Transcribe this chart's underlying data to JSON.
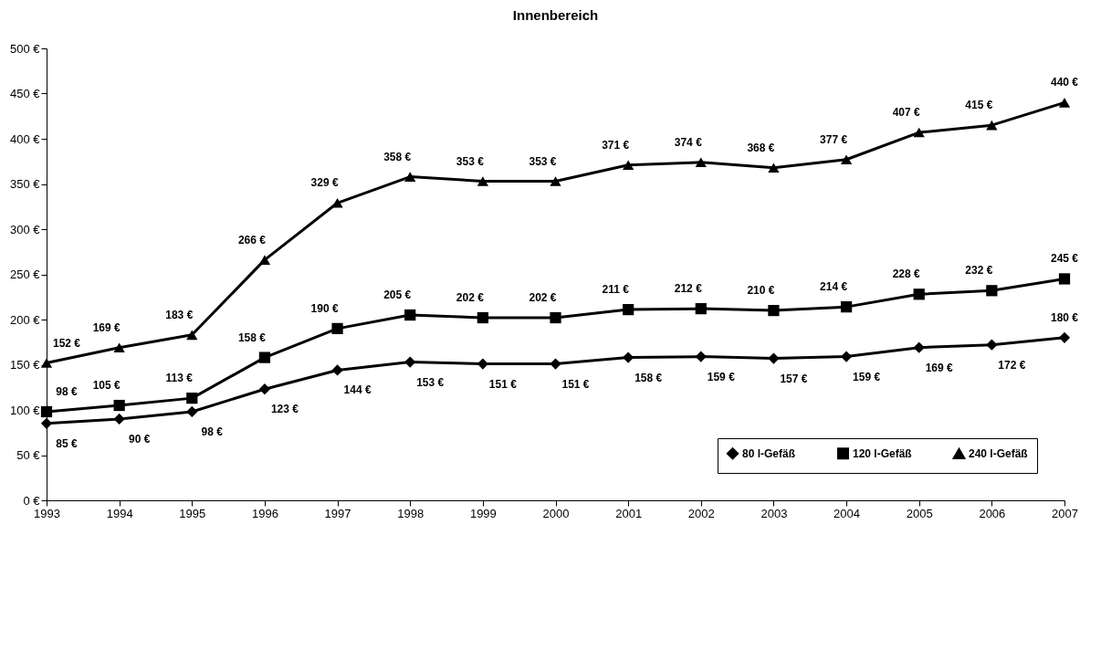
{
  "chart_data": {
    "type": "line",
    "title": "Innenbereich",
    "categories": [
      "1993",
      "1994",
      "1995",
      "1996",
      "1997",
      "1998",
      "1999",
      "2000",
      "2001",
      "2002",
      "2003",
      "2004",
      "2005",
      "2006",
      "2007"
    ],
    "ylim": [
      0,
      500
    ],
    "yticks": [
      {
        "value": 0,
        "label": "0 €"
      },
      {
        "value": 50,
        "label": "50 €"
      },
      {
        "value": 100,
        "label": "100 €"
      },
      {
        "value": 150,
        "label": "150 €"
      },
      {
        "value": 200,
        "label": "200 €"
      },
      {
        "value": 250,
        "label": "250 €"
      },
      {
        "value": 300,
        "label": "300 €"
      },
      {
        "value": 350,
        "label": "350 €"
      },
      {
        "value": 400,
        "label": "400 €"
      },
      {
        "value": 450,
        "label": "450 €"
      },
      {
        "value": 500,
        "label": "500 €"
      }
    ],
    "grid": false,
    "legend": "bottom right",
    "line_style": "solid",
    "series": [
      {
        "name": "80 l-Gefäß",
        "color": "#000000",
        "marker": "diamond",
        "values": [
          85,
          90,
          98,
          123,
          144,
          153,
          151,
          151,
          158,
          159,
          157,
          159,
          169,
          172,
          180
        ],
        "value_labels": [
          "85 €",
          "90 €",
          "98 €",
          "123 €",
          "144 €",
          "153 €",
          "151 €",
          "151 €",
          "158 €",
          "159 €",
          "157 €",
          "159 €",
          "169 €",
          "172 €",
          "180 €"
        ]
      },
      {
        "name": "120 l-Gefäß",
        "color": "#000000",
        "marker": "square",
        "values": [
          98,
          105,
          113,
          158,
          190,
          205,
          202,
          202,
          211,
          212,
          210,
          214,
          228,
          232,
          245
        ],
        "value_labels": [
          "98 €",
          "105 €",
          "113 €",
          "158 €",
          "190 €",
          "205 €",
          "202 €",
          "202 €",
          "211 €",
          "212 €",
          "210 €",
          "214 €",
          "228 €",
          "232 €",
          "245 €"
        ]
      },
      {
        "name": "240 l-Gefäß",
        "color": "#000000",
        "marker": "triangle",
        "values": [
          152,
          169,
          183,
          266,
          329,
          358,
          353,
          353,
          371,
          374,
          368,
          377,
          407,
          415,
          440
        ],
        "value_labels": [
          "152 €",
          "169 €",
          "183 €",
          "266 €",
          "329 €",
          "358 €",
          "353 €",
          "353 €",
          "371 €",
          "374 €",
          "368 €",
          "377 €",
          "407 €",
          "415 €",
          "440 €"
        ]
      }
    ]
  }
}
